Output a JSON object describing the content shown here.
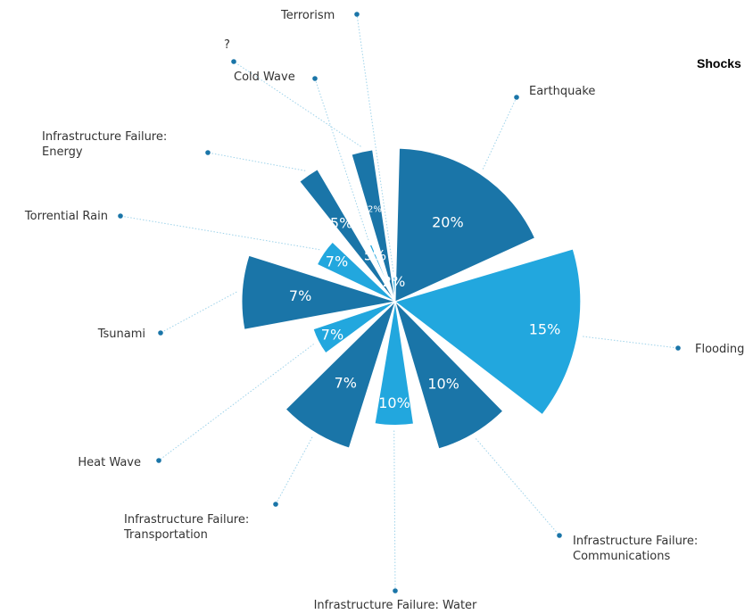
{
  "chart_data": {
    "type": "polar-area",
    "legend_title": "Shocks",
    "colors": {
      "dark": "#1a75a8",
      "light": "#22a7de",
      "dot": "#1a75a8"
    },
    "slices": [
      {
        "name": "Earthquake",
        "value": 20,
        "label": "20%",
        "shade": "dark"
      },
      {
        "name": "Flooding",
        "value": 15,
        "label": "15%",
        "shade": "light"
      },
      {
        "name": "Infrastructure Failure: Communications",
        "lines": [
          "Infrastructure Failure:",
          "Communications"
        ],
        "value": 10,
        "label": "10%",
        "shade": "dark"
      },
      {
        "name": "Infrastructure Failure: Water",
        "lines": [
          "Infrastructure Failure: Water"
        ],
        "value": 10,
        "label": "10%",
        "shade": "light"
      },
      {
        "name": "Infrastructure Failure: Transportation",
        "lines": [
          "Infrastructure Failure:",
          "Transportation"
        ],
        "value": 7,
        "label": "7%",
        "shade": "dark"
      },
      {
        "name": "Heat Wave",
        "value": 7,
        "label": "7%",
        "shade": "light"
      },
      {
        "name": "Tsunami",
        "value": 7,
        "label": "7%",
        "shade": "dark"
      },
      {
        "name": "Torrential Rain",
        "value": 7,
        "label": "7%",
        "shade": "light"
      },
      {
        "name": "Infrastructure Failure: Energy",
        "lines": [
          "Infrastructure Failure:",
          "Energy"
        ],
        "value": 5,
        "label": "5%",
        "shade": "dark"
      },
      {
        "name": "Cold Wave",
        "value": 5,
        "label": "5%",
        "shade": "light"
      },
      {
        "name": "?",
        "value": 2,
        "label": "2%",
        "shade": "dark"
      },
      {
        "name": "Terrorism",
        "value": 2,
        "label": "2%",
        "shade": "light"
      }
    ]
  }
}
